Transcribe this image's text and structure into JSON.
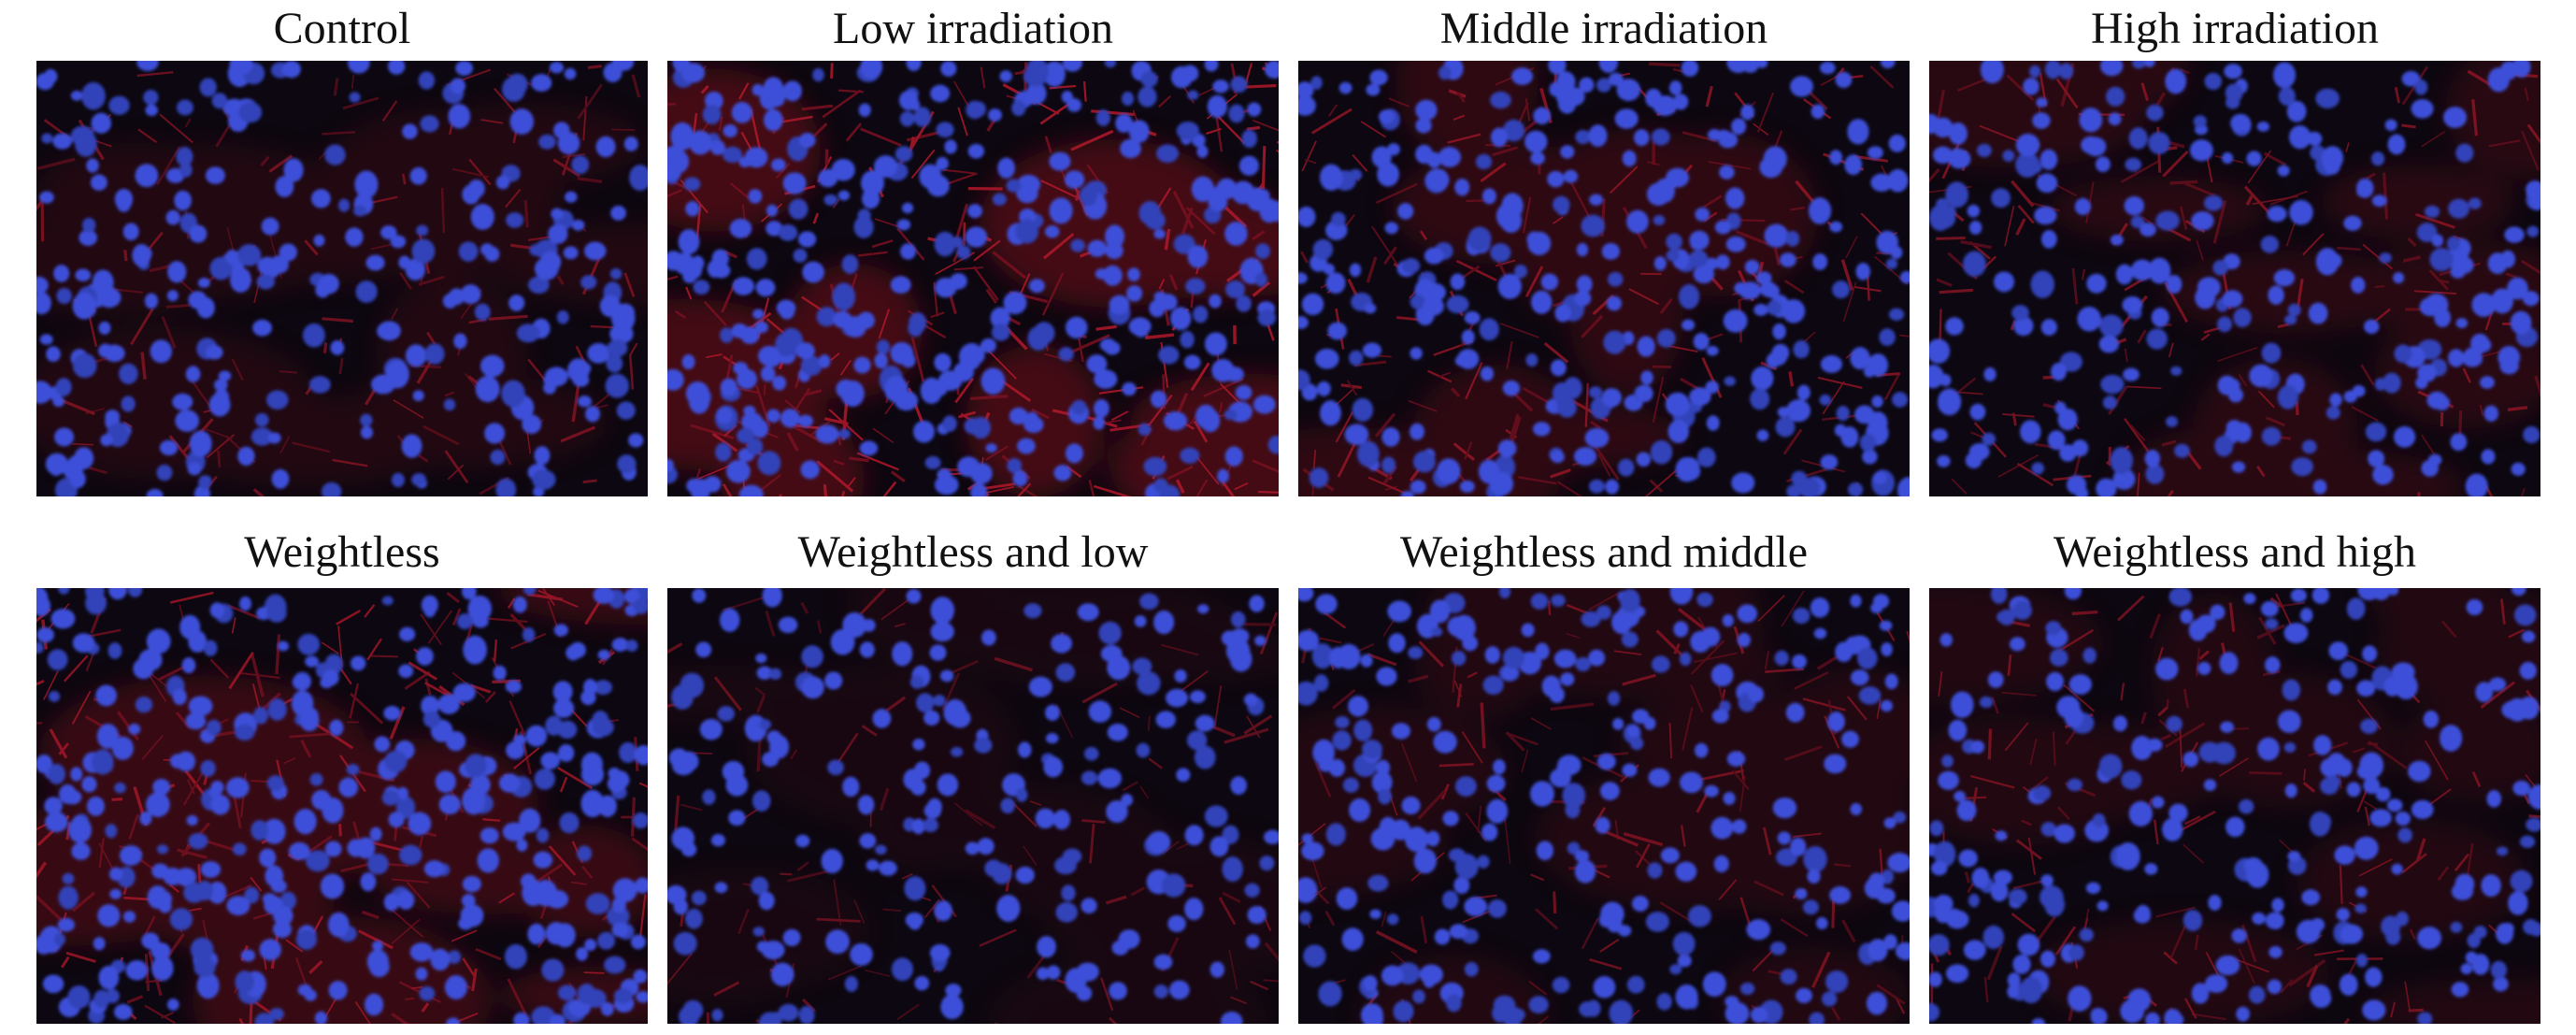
{
  "panels": [
    {
      "label": "Control"
    },
    {
      "label": "Low irradiation"
    },
    {
      "label": "Middle irradiation"
    },
    {
      "label": "High irradiation"
    },
    {
      "label": "Weightless"
    },
    {
      "label": "Weightless and low"
    },
    {
      "label": "Weightless and middle"
    },
    {
      "label": "Weightless and high"
    }
  ]
}
